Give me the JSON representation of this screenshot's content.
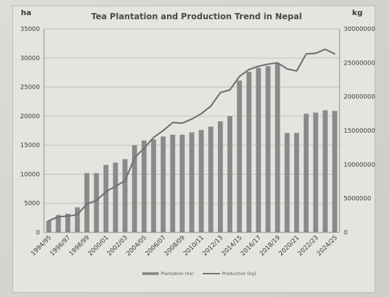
{
  "chart_data": {
    "type": "bar",
    "title": "Tea Plantation and Production Trend in Nepal",
    "left_axis_unit": "ha",
    "right_axis_unit": "kg",
    "ylim_left": [
      0,
      35000
    ],
    "ylim_right": [
      0,
      30000000
    ],
    "yticks_left": [
      "0",
      "5000",
      "10000",
      "15000",
      "20000",
      "25000",
      "30000",
      "35000"
    ],
    "yticks_right": [
      "0",
      "5000000",
      "10000000",
      "15000000",
      "20000000",
      "25000000",
      "30000000"
    ],
    "x_tick_labels": [
      "1994/95",
      "1996/97",
      "1998/99",
      "2000/01",
      "2002/03",
      "2004/05",
      "2006/07",
      "2008/09",
      "2010/11",
      "2012/13",
      "2014/15",
      "2016/17",
      "2018/19",
      "2020/21",
      "2022/23",
      "2024/25"
    ],
    "legend_position": "bottom",
    "grid": true,
    "series": [
      {
        "name": "Plantation (ha)",
        "kind": "bar",
        "axis": "left",
        "color": "#8a8a8a",
        "values": [
          2000,
          3000,
          3200,
          4300,
          10200,
          10200,
          11600,
          12000,
          12600,
          15000,
          15800,
          16000,
          16500,
          16800,
          16800,
          17200,
          17600,
          18200,
          19100,
          20000,
          26100,
          27600,
          28300,
          28600,
          29000,
          17100,
          17100,
          20400,
          20600,
          21000,
          20900
        ]
      },
      {
        "name": "Production (kg)",
        "kind": "line",
        "axis": "right",
        "color": "#707070",
        "values": [
          1700000,
          2300000,
          2400000,
          2600000,
          4200000,
          4700000,
          6000000,
          6800000,
          7600000,
          11000000,
          12400000,
          14000000,
          15000000,
          16200000,
          16100000,
          16700000,
          17500000,
          18600000,
          20600000,
          21000000,
          23000000,
          24000000,
          24500000,
          24800000,
          25000000,
          24100000,
          23800000,
          26300000,
          26400000,
          27000000,
          26300000
        ]
      }
    ]
  }
}
